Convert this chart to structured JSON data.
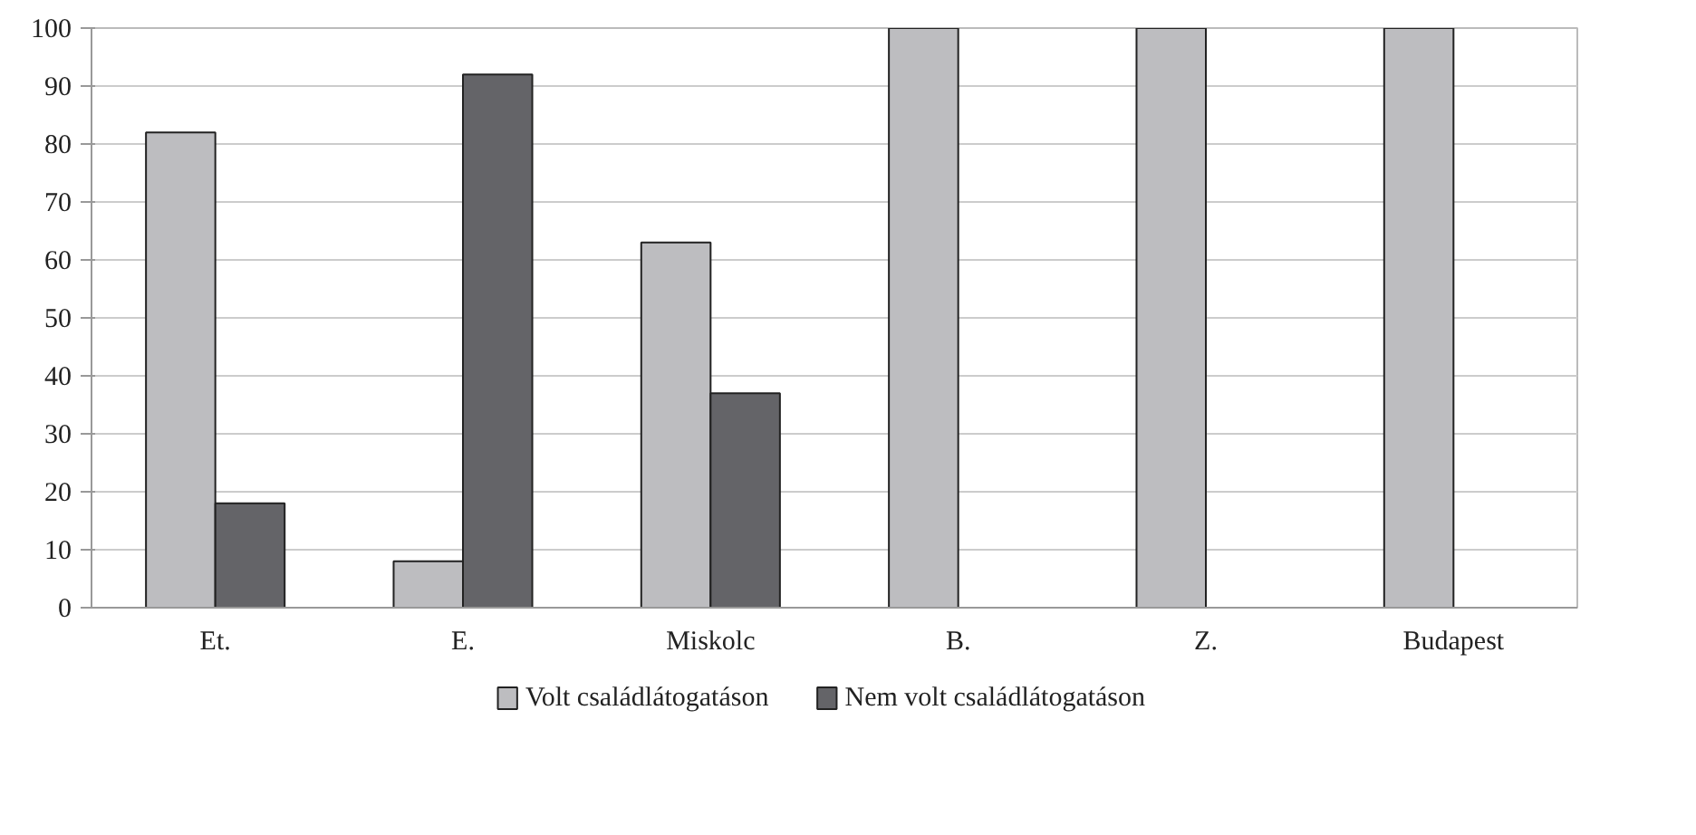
{
  "chart_data": {
    "type": "bar",
    "categories": [
      "Et.",
      "E.",
      "Miskolc",
      "B.",
      "Z.",
      "Budapest"
    ],
    "series": [
      {
        "name": "Volt családlátogatáson",
        "color": "#bdbdc0",
        "values": [
          82,
          8,
          63,
          100,
          100,
          100
        ]
      },
      {
        "name": "Nem volt családlátogatáson",
        "color": "#646468",
        "values": [
          18,
          92,
          37,
          0,
          0,
          0
        ]
      }
    ],
    "ylim": [
      0,
      100
    ],
    "yticks": [
      0,
      10,
      20,
      30,
      40,
      50,
      60,
      70,
      80,
      90,
      100
    ],
    "grid": "y",
    "legend": "bottom"
  }
}
